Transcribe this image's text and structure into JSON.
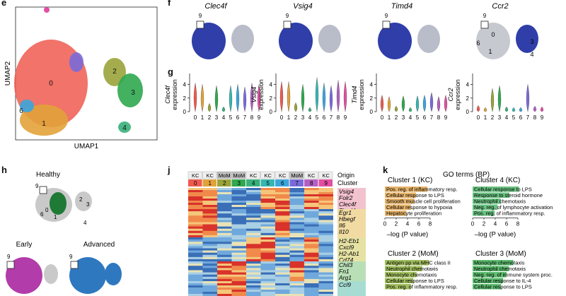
{
  "panels": {
    "e": "e",
    "f": "f",
    "g": "g",
    "h": "h",
    "j": "j",
    "k": "k"
  },
  "panel_e": {
    "xlabel": "UMAP1",
    "ylabel": "UMAP2",
    "clusters": [
      {
        "label": "0",
        "color": "#ee5a4f"
      },
      {
        "label": "1",
        "color": "#e2a23a"
      },
      {
        "label": "2",
        "color": "#9aa33a"
      },
      {
        "label": "3",
        "color": "#2fa84f"
      },
      {
        "label": "4",
        "color": "#38b07a"
      },
      {
        "label": "5",
        "color": "#37b6b0"
      },
      {
        "label": "6",
        "color": "#3aa6dd"
      },
      {
        "label": "7",
        "color": "#7a6ad9"
      },
      {
        "label": "8",
        "color": "#b45fc2"
      },
      {
        "label": "9",
        "color": "#e24fa3"
      }
    ]
  },
  "panel_f": {
    "genes": [
      "Clec4f",
      "Vsig4",
      "Timd4",
      "Ccr2"
    ],
    "labels": [
      "9",
      "0",
      "1",
      "3",
      "4",
      "6"
    ]
  },
  "panel_g": {
    "ylabel_suffix": "expression",
    "yticks": [
      "0",
      "2",
      "4"
    ],
    "xticks": [
      "0",
      "1",
      "2",
      "3",
      "4",
      "5",
      "6",
      "7",
      "8",
      "9"
    ],
    "genes": [
      "Clec4f",
      "Vsig4",
      "Timd4",
      "Ccr2"
    ]
  },
  "panel_h": {
    "titles": [
      "Healthy",
      "Early",
      "Advanced"
    ],
    "labels": [
      "9",
      "0",
      "1",
      "2",
      "3",
      "4",
      "6"
    ]
  },
  "panel_j": {
    "origin_label": "Origin",
    "cluster_label": "Cluster",
    "origins": [
      "KC",
      "KC",
      "MoM",
      "MoM",
      "KC",
      "KC",
      "KC",
      "MoM",
      "KC",
      "KC"
    ],
    "clusters": [
      "0",
      "1",
      "2",
      "3",
      "4",
      "5",
      "6",
      "7",
      "8",
      "9"
    ],
    "gene_groups": [
      {
        "genes": [
          "Vsig4",
          "Folr2",
          "Clec4f",
          "Timd4"
        ],
        "color": "#f3c2cf"
      },
      {
        "genes": [
          "Egr1",
          "Hbegf",
          "Il6",
          "Il10"
        ],
        "color": "#f1dba2"
      },
      {
        "genes": [
          "H2-Eb1",
          "Cxcl9",
          "H2-Ab1",
          "Cd74"
        ],
        "color": "#e6e2a4"
      },
      {
        "genes": [
          "Chil3",
          "Fn1",
          "Arg1"
        ],
        "color": "#b9dfb7"
      },
      {
        "genes": [
          "Ccl9"
        ],
        "color": "#a7dcd3"
      }
    ]
  },
  "panel_k": {
    "title": "GO terms (BP)",
    "blocks": [
      {
        "title": "Cluster 1 (KC)",
        "color": "#e2a64f",
        "terms": [
          "Pos. reg. of inflammatory resp.",
          "Cellular response to LPS",
          "Smooth muscle cell proliferation",
          "Cellular response to hypoxia",
          "Hepatocyte proliferation"
        ],
        "values": [
          7.5,
          5.5,
          5.2,
          4.6,
          3.8
        ]
      },
      {
        "title": "Cluster 4 (KC)",
        "color": "#4fb56a",
        "terms": [
          "Cellular response to LPS",
          "Response to steroid hormone",
          "Neutrophil chemotaxis",
          "Neg. reg. of lymphocyte activation",
          "Pos. reg. of inflammatory resp."
        ],
        "values": [
          8.2,
          6.5,
          5.0,
          4.4,
          3.9
        ]
      },
      {
        "title": "Cluster 2 (MoM)",
        "color": "#8fb23f",
        "terms": [
          "Antigen pp via MHC class II",
          "Neutrophil chemotaxis",
          "Monocyte chemotaxis",
          "Cellular response to LPS",
          "Pos. reg. of inflammatory resp."
        ],
        "values": [
          7.8,
          6.6,
          5.6,
          5.0,
          4.6
        ]
      },
      {
        "title": "Cluster 3 (MoM)",
        "color": "#3fae55",
        "terms": [
          "Monocyte chemotaxis",
          "Neutrophil chemotaxis",
          "Neg. reg. of immune system proc.",
          "Cellular response to IL-4",
          "Cellular response to LPS"
        ],
        "values": [
          7.2,
          6.4,
          6.0,
          5.4,
          5.0
        ]
      }
    ],
    "xticks": [
      "0",
      "2",
      "4",
      "6",
      "8"
    ],
    "xlabel": "–log (P value)"
  }
}
